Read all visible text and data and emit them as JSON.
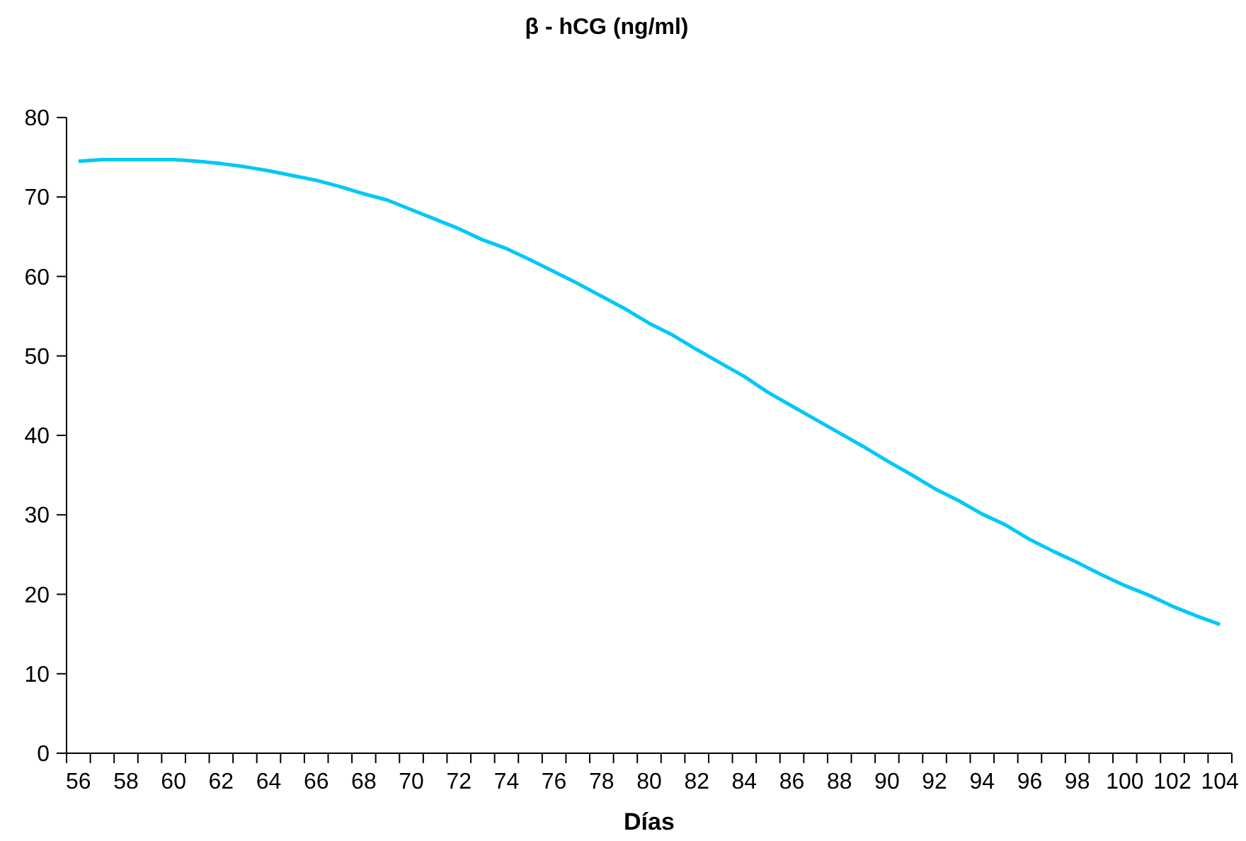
{
  "chart_data": {
    "type": "line",
    "title": "β - hCG (ng/ml)",
    "xlabel": "Días",
    "categories": [
      "56",
      null,
      "58",
      null,
      "60",
      null,
      "62",
      null,
      "64",
      null,
      "66",
      null,
      "68",
      null,
      "70",
      null,
      "72",
      null,
      "74",
      null,
      "76",
      null,
      "78",
      null,
      "80",
      null,
      "82",
      null,
      "84",
      null,
      "86",
      null,
      "88",
      null,
      "90",
      null,
      "92",
      null,
      "94",
      null,
      "96",
      null,
      "98",
      null,
      "100",
      null,
      "102",
      null,
      "104"
    ],
    "series": [
      {
        "color": "#00c8f8",
        "values": [
          74.5,
          74.7,
          74.7,
          74.7,
          74.7,
          74.5,
          74.2,
          73.8,
          73.3,
          72.7,
          72.1,
          71.3,
          70.4,
          69.6,
          68.4,
          67.2,
          66.0,
          64.6,
          63.5,
          62.1,
          60.6,
          59.1,
          57.5,
          55.9,
          54.1,
          52.6,
          50.8,
          49.1,
          47.4,
          45.4,
          43.7,
          42.0,
          40.3,
          38.6,
          36.8,
          35.1,
          33.3,
          31.8,
          30.1,
          28.7,
          26.9,
          25.4,
          24.0,
          22.5,
          21.1,
          19.9,
          18.5,
          17.3,
          16.2
        ]
      }
    ],
    "ylim": [
      0,
      80
    ],
    "yticks": [
      0,
      10,
      20,
      30,
      40,
      50,
      60,
      70,
      80
    ],
    "marker": "none",
    "line_style": "solid"
  }
}
